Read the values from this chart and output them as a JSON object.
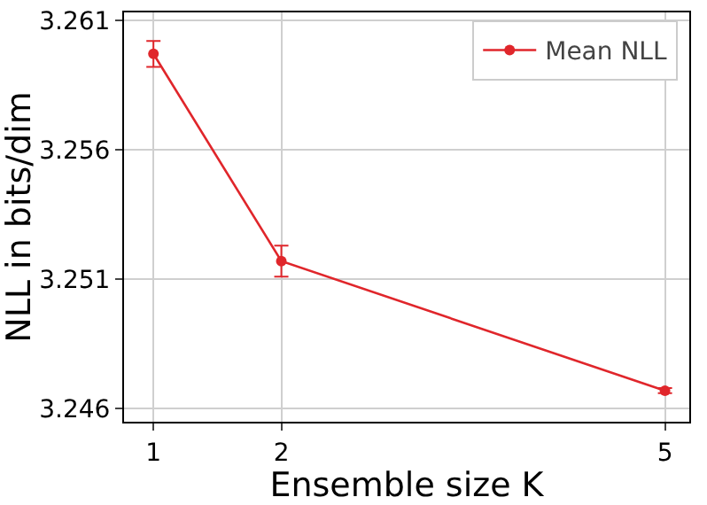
{
  "chart_data": {
    "type": "line",
    "xlabel": "Ensemble size K",
    "ylabel": "NLL in bits/dim",
    "x": [
      1,
      2,
      5
    ],
    "series": [
      {
        "name": "Mean NLL",
        "color": "#e0262b",
        "values": [
          3.2597,
          3.2517,
          3.2467
        ],
        "errors": [
          0.0005,
          0.0006,
          0.0001
        ]
      }
    ],
    "xlim": [
      0.77,
      5.19
    ],
    "xticks": [
      1,
      2,
      5
    ],
    "ylim": [
      3.2455,
      3.2613
    ],
    "yticks": [
      {
        "value": 3.246,
        "label": "3.246"
      },
      {
        "value": 3.251,
        "label": "3.251"
      },
      {
        "value": 3.256,
        "label": "3.256"
      },
      {
        "value": 3.261,
        "label": "3.261"
      }
    ],
    "grid": true,
    "legend": "top right",
    "marker": "circle",
    "line_style": "solid"
  }
}
